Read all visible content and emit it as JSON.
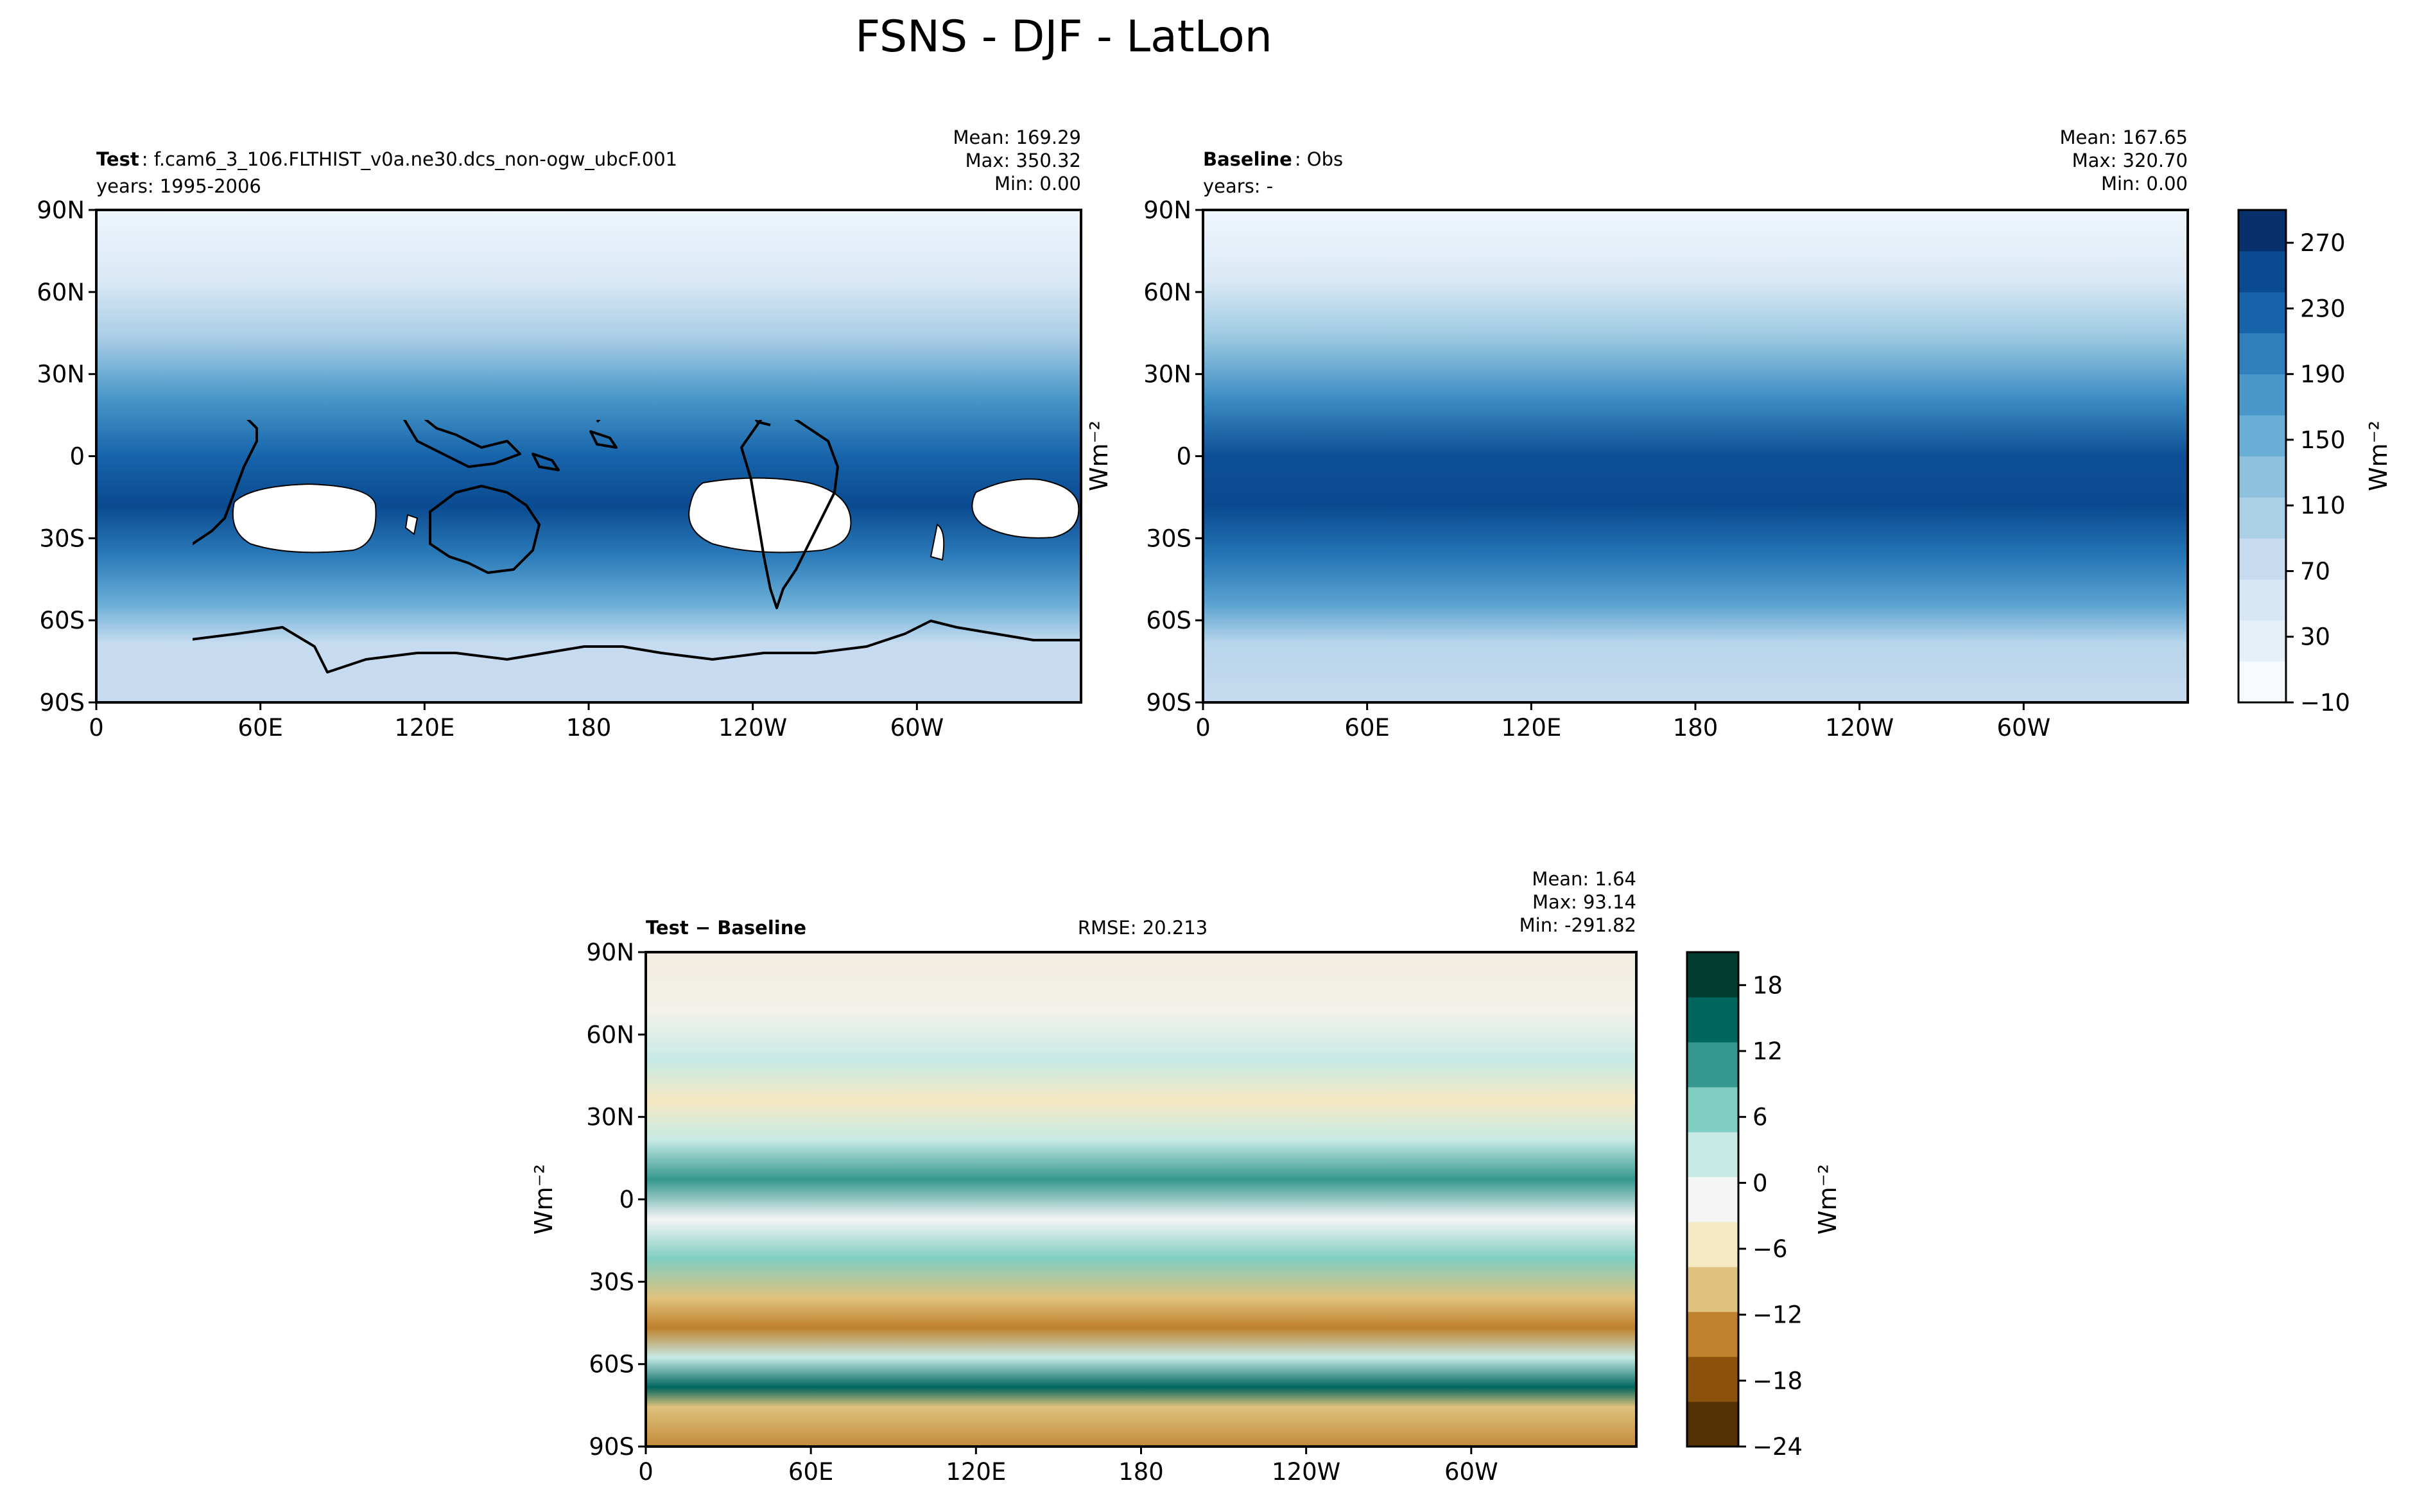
{
  "figure": {
    "title": "FSNS - DJF - LatLon"
  },
  "colors": {
    "blues": [
      "#f7fbff",
      "#e6f0f9",
      "#d6e6f4",
      "#c6dbef",
      "#abcfe5",
      "#8dc1dd",
      "#6aaed6",
      "#4a98c9",
      "#3080bd",
      "#1764ab",
      "#0a4a90",
      "#08306b"
    ],
    "brbg": [
      "#543005",
      "#8c510a",
      "#bf812d",
      "#dfc27d",
      "#f6e8c3",
      "#f5f5f5",
      "#c7eae5",
      "#80cdc1",
      "#35978f",
      "#01665e",
      "#003c30"
    ]
  },
  "chart_data": [
    {
      "type": "heatmap",
      "panel": "test",
      "label_bold": "Test",
      "label_rest": ": f.cam6_3_106.FLTHIST_v0a.ne30.dcs_non-ogw_ubcF.001",
      "years": "years: 1995-2006",
      "stats": [
        "Mean: 169.29",
        "Max: 350.32",
        "Min:  0.00"
      ],
      "x_ticks": [
        "0",
        "60E",
        "120E",
        "180",
        "120W",
        "60W"
      ],
      "y_ticks": [
        "90N",
        "60N",
        "30N",
        "0",
        "30S",
        "60S",
        "90S"
      ],
      "xlim": [
        0,
        360
      ],
      "ylim": [
        -90,
        90
      ]
    },
    {
      "type": "heatmap",
      "panel": "baseline",
      "label_bold": "Baseline",
      "label_rest": ": Obs",
      "years": "years: -",
      "stats": [
        "Mean: 167.65",
        "Max: 320.70",
        "Min:  0.00"
      ],
      "x_ticks": [
        "0",
        "60E",
        "120E",
        "180",
        "120W",
        "60W"
      ],
      "y_ticks": [
        "90N",
        "60N",
        "30N",
        "0",
        "30S",
        "60S",
        "90S"
      ],
      "ylabel": "Wm⁻²",
      "xlim": [
        0,
        360
      ],
      "ylim": [
        -90,
        90
      ],
      "colorbar": {
        "ticks": [
          "270",
          "230",
          "190",
          "150",
          "110",
          "70",
          "30",
          "−10"
        ],
        "range": [
          -10,
          290
        ],
        "label": "Wm⁻²"
      }
    },
    {
      "type": "heatmap",
      "panel": "diff",
      "label_bold": "Test − Baseline",
      "rmse": "RMSE: 20.213",
      "stats": [
        "Mean:  1.64",
        "Max: 93.14",
        "Min: -291.82"
      ],
      "x_ticks": [
        "0",
        "60E",
        "120E",
        "180",
        "120W",
        "60W"
      ],
      "y_ticks": [
        "90N",
        "60N",
        "30N",
        "0",
        "30S",
        "60S",
        "90S"
      ],
      "ylabel": "Wm⁻²",
      "xlim": [
        0,
        360
      ],
      "ylim": [
        -90,
        90
      ],
      "colorbar": {
        "ticks": [
          "18",
          "12",
          "6",
          "0",
          "−6",
          "−12",
          "−18",
          "−24"
        ],
        "range": [
          -24,
          21
        ],
        "label": "Wm⁻²"
      }
    }
  ]
}
